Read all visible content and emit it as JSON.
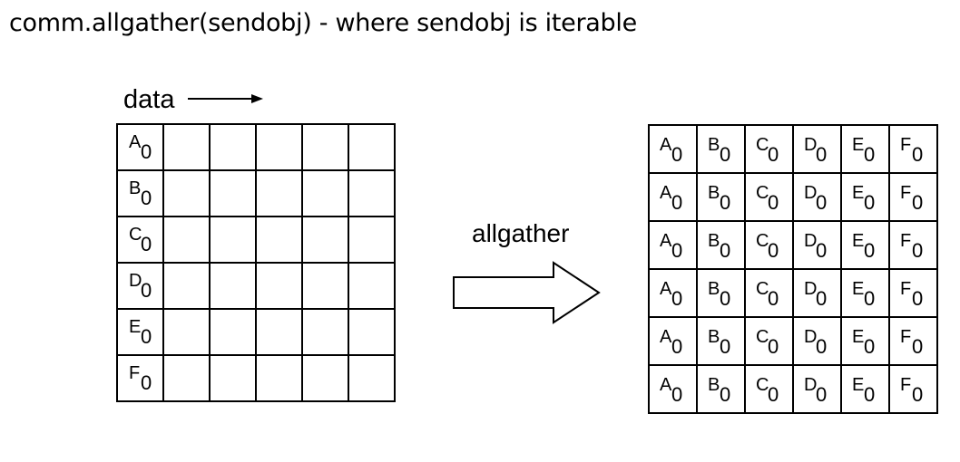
{
  "title": "comm.allgather(sendobj) - where sendobj is iterable",
  "diagram": {
    "data_label": "data",
    "operation_label": "allgather",
    "subscript": "0",
    "items": [
      "A",
      "B",
      "C",
      "D",
      "E",
      "F"
    ]
  }
}
